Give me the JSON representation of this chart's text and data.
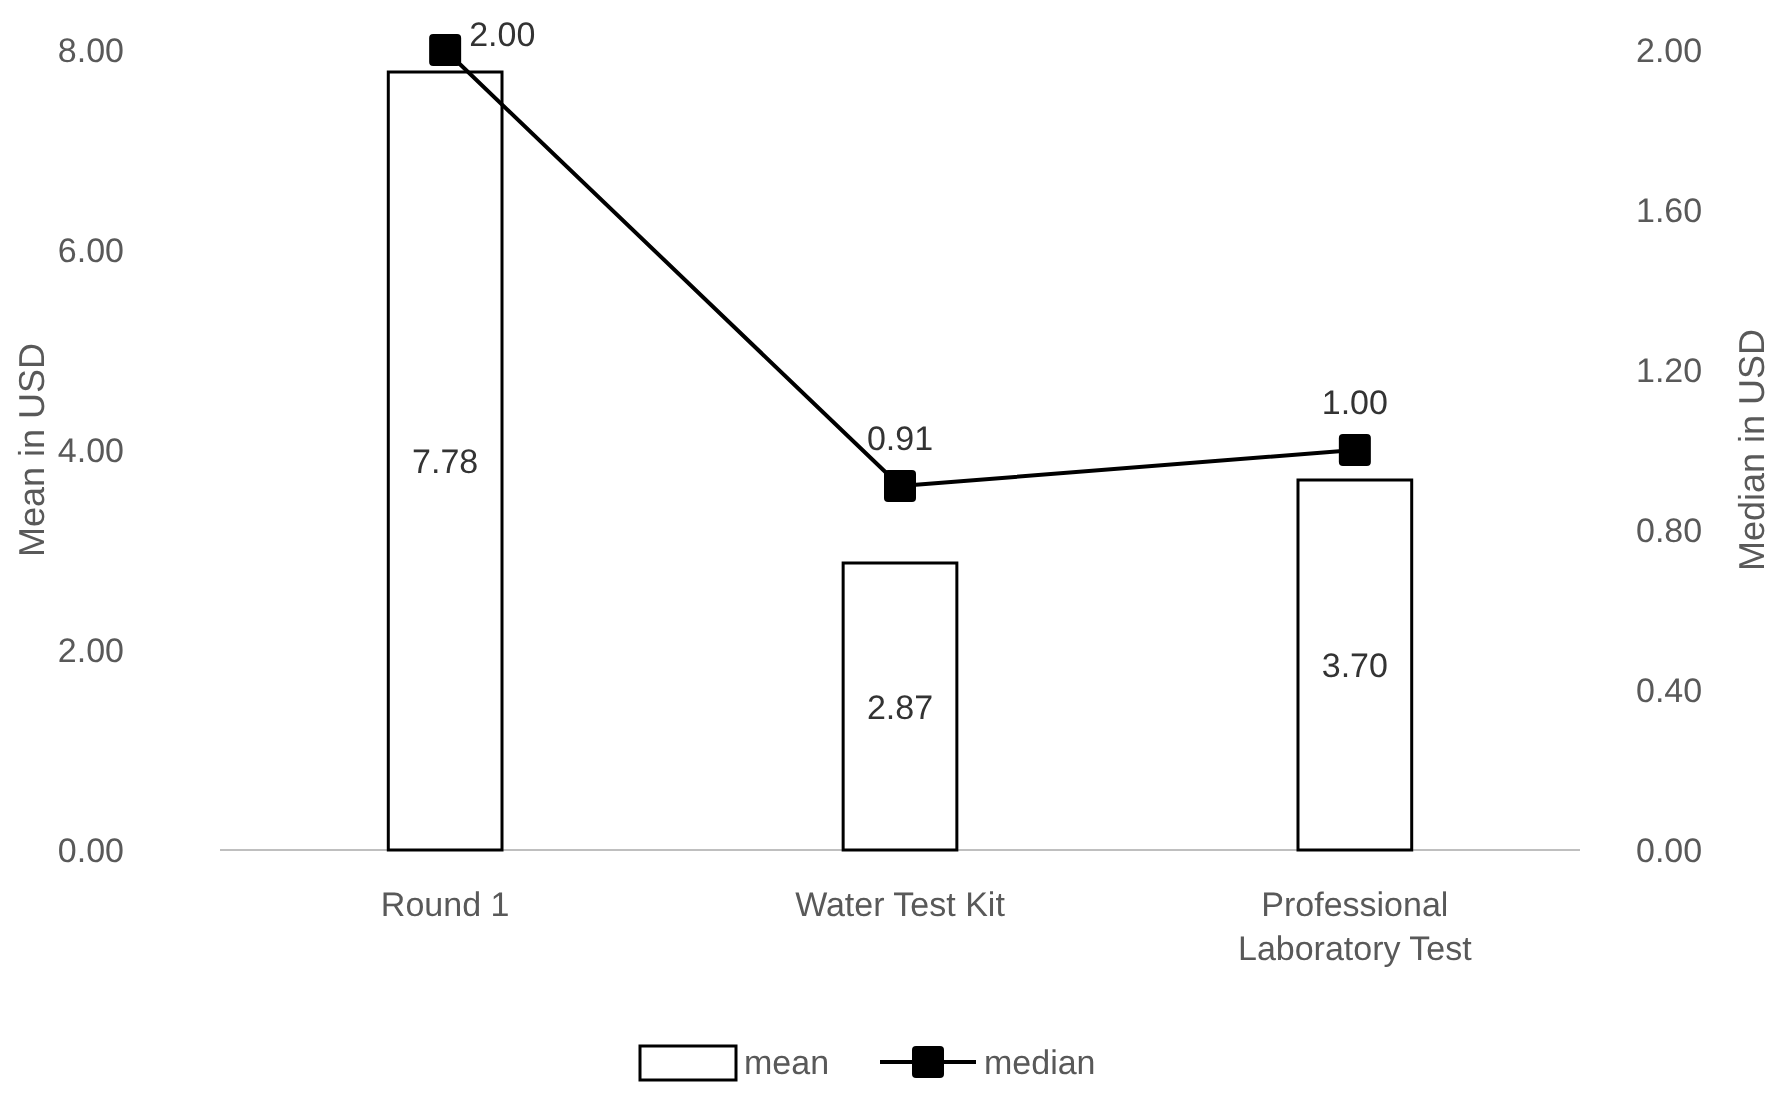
{
  "chart_data": {
    "type": "bar",
    "categories": [
      "Round 1",
      "Water Test Kit",
      "Professional Laboratory Test"
    ],
    "ylabel": "Mean in USD",
    "y2label": "Median in USD",
    "series": [
      {
        "name": "mean",
        "color": "#ffffff",
        "values": [
          7.78,
          2.87,
          3.7
        ],
        "value_labels": [
          "7.78",
          "2.87",
          "3.70"
        ]
      },
      {
        "name": "median",
        "type": "line",
        "axis": "y2",
        "color": "#000000",
        "marker": "square",
        "values": [
          2.0,
          0.91,
          1.0
        ],
        "value_labels": [
          "2.00",
          "0.91",
          "1.00"
        ]
      }
    ],
    "ylim": [
      0,
      8
    ],
    "yticks": [
      {
        "value": 0,
        "label": "0.00"
      },
      {
        "value": 2,
        "label": "2.00"
      },
      {
        "value": 4,
        "label": "4.00"
      },
      {
        "value": 6,
        "label": "6.00"
      },
      {
        "value": 8,
        "label": "8.00"
      }
    ],
    "y2lim": [
      0,
      2
    ],
    "y2ticks": [
      {
        "value": 0,
        "label": "0.00"
      },
      {
        "value": 0.4,
        "label": "0.40"
      },
      {
        "value": 0.8,
        "label": "0.80"
      },
      {
        "value": 1.2,
        "label": "1.20"
      },
      {
        "value": 1.6,
        "label": "1.60"
      },
      {
        "value": 2,
        "label": "2.00"
      }
    ],
    "legend": "bottom",
    "grid": false
  }
}
